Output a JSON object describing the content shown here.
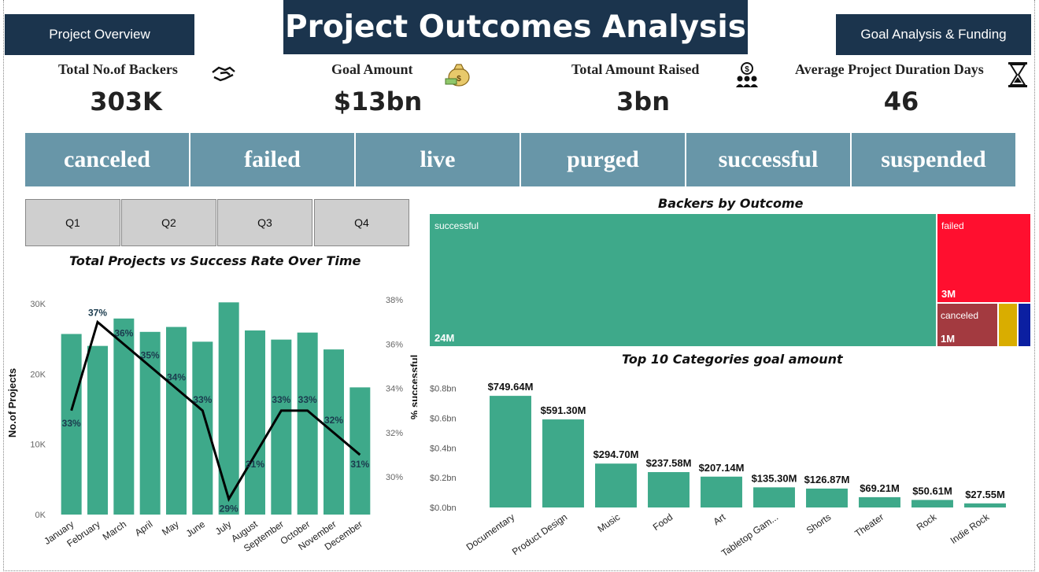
{
  "header": {
    "title": "Project Outcomes Analysis",
    "nav_left": "Project Overview",
    "nav_right": "Goal Analysis & Funding"
  },
  "kpis": [
    {
      "label": "Total No.of Backers",
      "value": "303K",
      "icon": "handshake-icon"
    },
    {
      "label": "Goal Amount",
      "value": "$13bn",
      "icon": "money-bag-icon"
    },
    {
      "label": "Total Amount Raised",
      "value": "3bn",
      "icon": "investors-icon"
    },
    {
      "label": "Average Project Duration Days",
      "value": "46",
      "icon": "hourglass-icon"
    }
  ],
  "outcome_slicer": [
    "canceled",
    "failed",
    "live",
    "purged",
    "successful",
    "suspended"
  ],
  "quarters": [
    "Q1",
    "Q2",
    "Q3",
    "Q4"
  ],
  "colors": {
    "header_bg": "#1b344d",
    "slicer_bg": "#6896a8",
    "teal": "#3ea98a",
    "failed": "#ff0f2f",
    "canceled": "#a33a40",
    "yellow": "#d9ad00",
    "blue": "#0b1fa1"
  },
  "chart_data": [
    {
      "type": "bar",
      "title": "Total Projects vs Success Rate Over Time",
      "ylabel": "No.of Projects",
      "y2label": "% successful",
      "categories": [
        "January",
        "February",
        "March",
        "April",
        "May",
        "June",
        "July",
        "August",
        "September",
        "October",
        "November",
        "December"
      ],
      "series": [
        {
          "name": "No.of Projects",
          "type": "bar",
          "values": [
            25700,
            24000,
            27900,
            26000,
            26700,
            24600,
            30200,
            26200,
            24900,
            25900,
            23500,
            18100
          ]
        },
        {
          "name": "% successful",
          "type": "line",
          "axis": "secondary",
          "values": [
            33,
            37,
            36,
            35,
            34,
            33,
            29,
            31,
            33,
            33,
            32,
            31
          ],
          "labels": [
            "33%",
            "37%",
            "36%",
            "35%",
            "34%",
            "33%",
            "29%",
            "31%",
            "33%",
            "33%",
            "32%",
            "31%"
          ]
        }
      ],
      "yticks": [
        "0K",
        "10K",
        "20K",
        "30K"
      ],
      "ylim": [
        0,
        30000
      ],
      "y2ticks": [
        "30%",
        "32%",
        "34%",
        "36%",
        "38%"
      ],
      "y2lim": [
        28.3,
        38.4
      ]
    },
    {
      "type": "treemap",
      "title": "Backers by Outcome",
      "items": [
        {
          "label": "successful",
          "value_label": "24M",
          "value": 24,
          "color": "#3ea98a"
        },
        {
          "label": "failed",
          "value_label": "3M",
          "value": 3,
          "color": "#ff0f2f"
        },
        {
          "label": "canceled",
          "value_label": "1M",
          "value": 1,
          "color": "#a33a40"
        },
        {
          "label": "",
          "value_label": "",
          "value": 0.3,
          "color": "#d9ad00"
        },
        {
          "label": "",
          "value_label": "",
          "value": 0.2,
          "color": "#0b1fa1"
        }
      ]
    },
    {
      "type": "bar",
      "title": "Top 10 Categories goal amount",
      "categories": [
        "Documentary",
        "Product Design",
        "Music",
        "Food",
        "Art",
        "Tabletop Gam...",
        "Shorts",
        "Theater",
        "Rock",
        "Indie Rock"
      ],
      "values": [
        749.64,
        591.3,
        294.7,
        237.58,
        207.14,
        135.3,
        126.87,
        69.21,
        50.61,
        27.55
      ],
      "data_labels": [
        "$749.64M",
        "$591.30M",
        "$294.70M",
        "$237.58M",
        "$207.14M",
        "$135.30M",
        "$126.87M",
        "$69.21M",
        "$50.61M",
        "$27.55M"
      ],
      "yticks": [
        "$0.0bn",
        "$0.2bn",
        "$0.4bn",
        "$0.6bn",
        "$0.8bn"
      ],
      "ylim": [
        0,
        800
      ]
    }
  ]
}
